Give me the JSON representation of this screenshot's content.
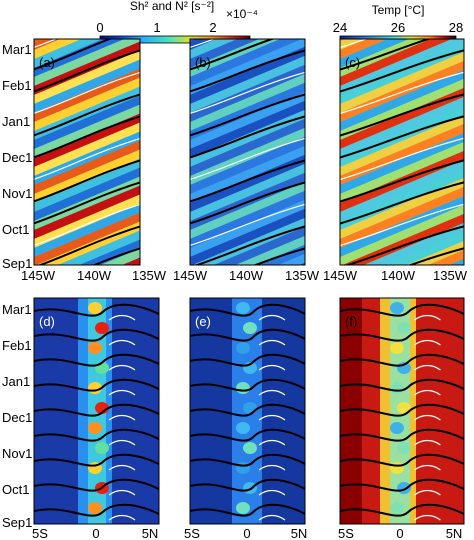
{
  "figure": {
    "colorbar_left": {
      "title": "Sh² and N² [s⁻²]",
      "scale": "×10⁻⁴",
      "ticks": [
        "0",
        "1",
        "2"
      ],
      "range": [
        0,
        2.7
      ]
    },
    "colorbar_right": {
      "title": "Temp [°C]",
      "ticks": [
        "24",
        "26",
        "28"
      ],
      "range": [
        24,
        28
      ]
    },
    "panel_labels": [
      "(a)",
      "(b)",
      "(c)",
      "(d)",
      "(e)",
      "(f)"
    ],
    "y_ticks": [
      "Mar1",
      "Feb1",
      "Jan1",
      "Dec1",
      "Nov1",
      "Oct1",
      "Sep1"
    ],
    "x_ticks_top": [
      "145W",
      "140W",
      "135W"
    ],
    "x_ticks_bottom": [
      "5S",
      "0",
      "5N"
    ]
  },
  "chart_data": [
    {
      "panel": "(a)",
      "type": "heatmap",
      "x": "longitude",
      "xlim": [
        "145W",
        "135W"
      ],
      "y": "date",
      "ylim": [
        "Sep1",
        "Mar1"
      ],
      "field": "Sh²",
      "pattern": "diagonal bands propagating westward",
      "overlay": "white and black contours"
    },
    {
      "panel": "(b)",
      "type": "heatmap",
      "x": "longitude",
      "xlim": [
        "145W",
        "135W"
      ],
      "y": "date",
      "ylim": [
        "Sep1",
        "Mar1"
      ],
      "field": "N²",
      "pattern": "diagonal bands, mostly low values",
      "overlay": "white and black contours"
    },
    {
      "panel": "(c)",
      "type": "heatmap",
      "x": "longitude",
      "xlim": [
        "145W",
        "135W"
      ],
      "y": "date",
      "ylim": [
        "Sep1",
        "Mar1"
      ],
      "field": "Temp",
      "pattern": "diagonal bands",
      "overlay": "white and black contours"
    },
    {
      "panel": "(d)",
      "type": "heatmap",
      "x": "latitude",
      "xlim": [
        "5S",
        "5N"
      ],
      "y": "date",
      "ylim": [
        "Sep1",
        "Mar1"
      ],
      "field": "Sh²",
      "pattern": "maximum near equator, low off-equator",
      "overlay": "white and black contours"
    },
    {
      "panel": "(e)",
      "type": "heatmap",
      "x": "latitude",
      "xlim": [
        "5S",
        "5N"
      ],
      "y": "date",
      "ylim": [
        "Sep1",
        "Mar1"
      ],
      "field": "N²",
      "pattern": "low values with ribbon north of equator",
      "overlay": "white and black contours"
    },
    {
      "panel": "(f)",
      "type": "heatmap",
      "x": "latitude",
      "xlim": [
        "5S",
        "5N"
      ],
      "y": "date",
      "ylim": [
        "Sep1",
        "Mar1"
      ],
      "field": "Temp",
      "pattern": "warm (dark red) south, cool near equator",
      "overlay": "white and black contours"
    }
  ]
}
